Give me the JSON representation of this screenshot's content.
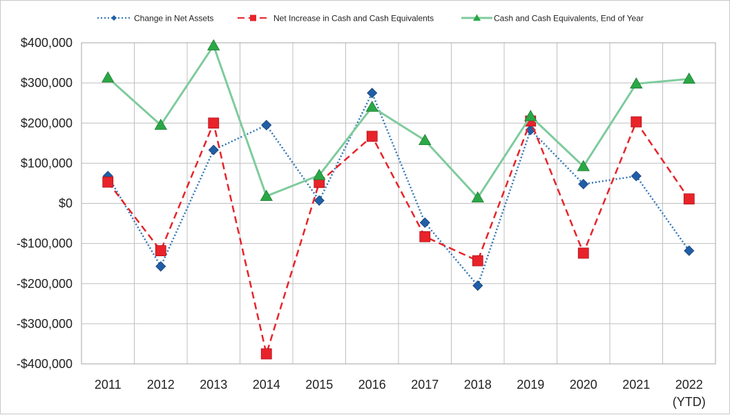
{
  "chart_data": {
    "type": "line",
    "categories": [
      "2011",
      "2012",
      "2013",
      "2014",
      "2015",
      "2016",
      "2017",
      "2018",
      "2019",
      "2020",
      "2021",
      "2022"
    ],
    "category_sublabels": {
      "2022": "(YTD)"
    },
    "ylim": [
      -400000,
      400000
    ],
    "yticks": [
      400000,
      300000,
      200000,
      100000,
      0,
      -100000,
      -200000,
      -300000,
      -400000
    ],
    "ytick_labels": [
      "$400,000",
      "$300,000",
      "$200,000",
      "$100,000",
      "$0",
      "-$100,000",
      "-$200,000",
      "-$300,000",
      "-$400,000"
    ],
    "grid": true,
    "legend_position": "top",
    "series": [
      {
        "name": "Change in Net Assets",
        "color": "#2e75b6",
        "marker_color": "#1f5fa8",
        "line_style": "dotted",
        "marker": "diamond",
        "values": [
          68000,
          -157000,
          133000,
          195000,
          7000,
          275000,
          -48000,
          -205000,
          183000,
          48000,
          68000,
          -118000
        ]
      },
      {
        "name": "Net Increase in Cash and Cash Equivalents",
        "color": "#e8232a",
        "marker_color": "#e8232a",
        "line_style": "dashed",
        "marker": "square",
        "values": [
          53000,
          -118000,
          200000,
          -375000,
          52000,
          167000,
          -83000,
          -143000,
          205000,
          -124000,
          203000,
          11000
        ]
      },
      {
        "name": "Cash and Cash Equivalents, End of Year",
        "color": "#7ecb9c",
        "marker_color": "#2aa845",
        "line_style": "solid",
        "marker": "triangle",
        "values": [
          313000,
          195000,
          393000,
          18000,
          70000,
          240000,
          157000,
          14000,
          217000,
          92000,
          298000,
          310000
        ]
      }
    ]
  }
}
